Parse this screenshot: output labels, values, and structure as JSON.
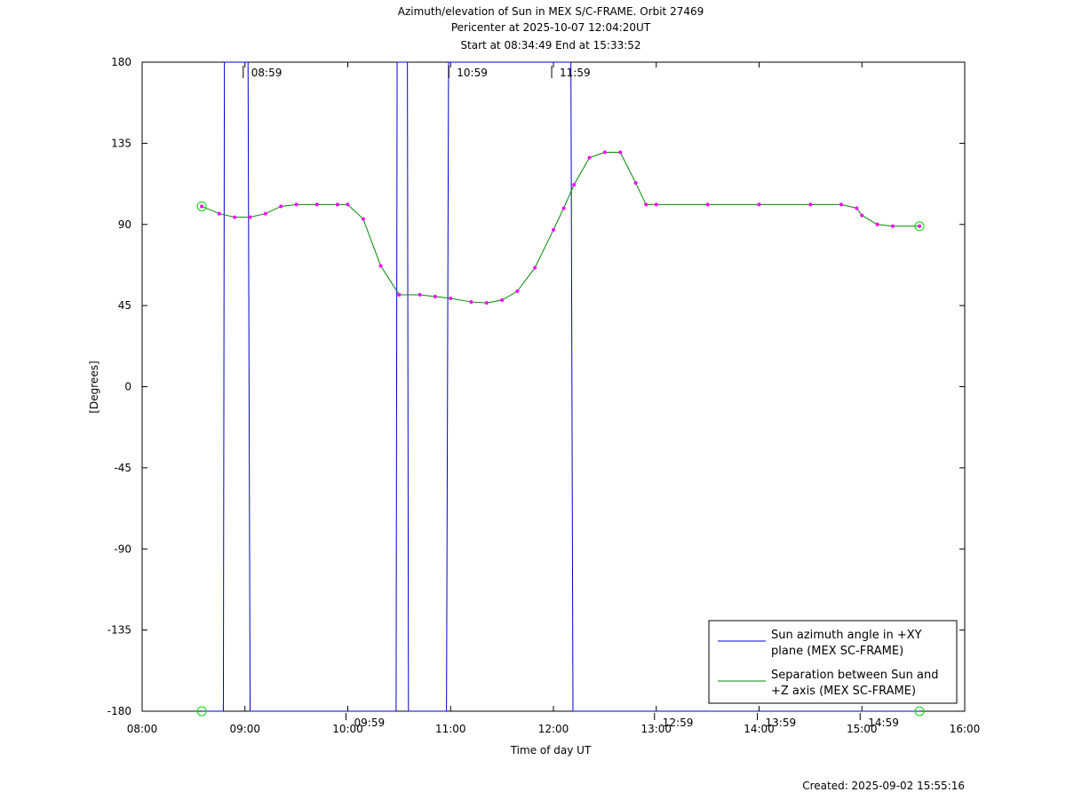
{
  "chart_data": {
    "type": "line",
    "title": "Azimuth/elevation of Sun in MEX S/C-FRAME.  Orbit 27469",
    "subtitle": "Pericenter at 2025-10-07 12:04:20UT",
    "subtitle2": "Start at 08:34:49 End at 15:33:52",
    "xlabel": "Time of day UT",
    "ylabel": "[Degrees]",
    "footer": "Created: 2025-09-02 15:55:16",
    "xlim": [
      8,
      16
    ],
    "xticks": [
      {
        "value": 8,
        "label": "08:00"
      },
      {
        "value": 9,
        "label": "09:00"
      },
      {
        "value": 10,
        "label": "10:00"
      },
      {
        "value": 11,
        "label": "11:00"
      },
      {
        "value": 12,
        "label": "12:00"
      },
      {
        "value": 13,
        "label": "13:00"
      },
      {
        "value": 14,
        "label": "14:00"
      },
      {
        "value": 15,
        "label": "15:00"
      },
      {
        "value": 16,
        "label": "16:00"
      }
    ],
    "ylim": [
      -180,
      180
    ],
    "yticks": [
      180,
      135,
      90,
      45,
      0,
      -45,
      -90,
      -135,
      -180
    ],
    "series": [
      {
        "name": "Sun azimuth angle in +XY plane (MEX SC-FRAME)",
        "color": "#0000cc",
        "x": [
          8.58,
          8.79,
          8.8,
          9.03,
          9.05,
          10.47,
          10.48,
          10.58,
          10.59,
          10.96,
          10.98,
          12.17,
          12.19,
          15.56
        ],
        "values": [
          -180,
          -180,
          180,
          180,
          -180,
          -180,
          180,
          180,
          -180,
          -180,
          180,
          180,
          -180,
          -180
        ]
      },
      {
        "name": "Separation between Sun and +Z axis (MEX SC-FRAME)",
        "color": "#008800",
        "x": [
          8.58,
          8.75,
          8.9,
          9.05,
          9.2,
          9.35,
          9.5,
          9.7,
          9.9,
          10.0,
          10.15,
          10.32,
          10.5,
          10.7,
          10.85,
          11.0,
          11.2,
          11.35,
          11.5,
          11.65,
          11.82,
          12.0,
          12.1,
          12.2,
          12.35,
          12.5,
          12.65,
          12.8,
          12.9,
          13.0,
          13.5,
          14.0,
          14.5,
          14.8,
          14.95,
          15.0,
          15.15,
          15.3,
          15.56
        ],
        "values": [
          100,
          96,
          94,
          94,
          96,
          100,
          101,
          101,
          101,
          101,
          93,
          67,
          51,
          51,
          50,
          49,
          47,
          46.5,
          48,
          53,
          66,
          87,
          99,
          112,
          127,
          130,
          130,
          113,
          101,
          101,
          101,
          101,
          101,
          101,
          99,
          95,
          90,
          89,
          89
        ]
      }
    ],
    "annotations": [
      {
        "label": "08:59",
        "x": 8.983,
        "y": 180
      },
      {
        "label": "10:59",
        "x": 10.983,
        "y": 180
      },
      {
        "label": "11:59",
        "x": 11.983,
        "y": 180
      },
      {
        "label": "09:59",
        "x": 9.983,
        "y": -180
      },
      {
        "label": "12:59",
        "x": 12.983,
        "y": -180
      },
      {
        "label": "13:59",
        "x": 13.983,
        "y": -180
      },
      {
        "label": "14:59",
        "x": 14.983,
        "y": -180
      }
    ],
    "marker_color": "#ff00ff"
  }
}
